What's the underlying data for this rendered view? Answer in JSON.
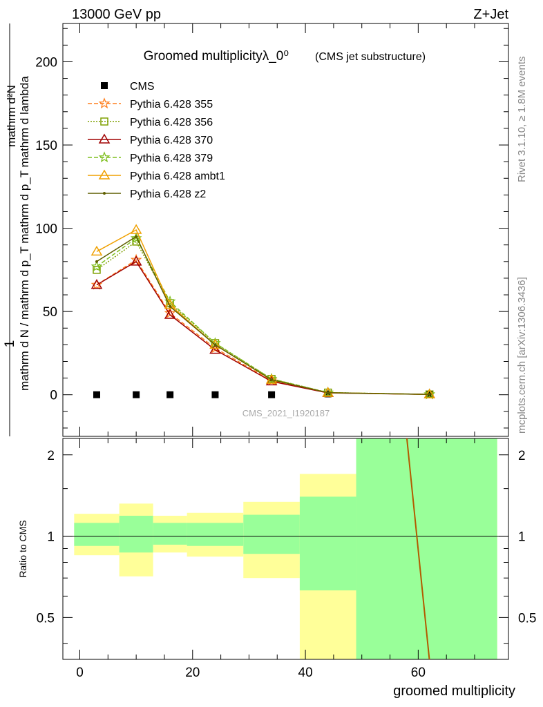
{
  "header": {
    "left": "13000 GeV pp",
    "right": "Z+Jet"
  },
  "side_labels": {
    "rivet": "Rivet 3.1.10, ≥ 1.8M events",
    "mcplots": "mcplots.cern.ch [arXiv:1306.3436]"
  },
  "colors": {
    "cms": "#000000",
    "p355": "#ff7f1e",
    "p356": "#7f9f00",
    "p370": "#a00000",
    "p379": "#7fbf1f",
    "ambt1": "#f0a000",
    "z2": "#5f5f00",
    "band_outer": "#ffff99",
    "band_inner": "#99ff99",
    "ratio_line": "#b35a00"
  },
  "chart_data": [
    {
      "type": "line",
      "title": "Groomed multiplicityλ_0⁰",
      "subtitle": "(CMS jet substructure)",
      "watermark": "CMS_2021_I1920187",
      "ylabel_upper": "1",
      "ylabel_main": "mathrm d N / mathrm d p_T mathrm d p_T mathrm d lambda",
      "ylabel_over": "mathrm d²N",
      "ylim": [
        -25,
        223
      ],
      "yticks": [
        0,
        50,
        100,
        150,
        200
      ],
      "xlim": [
        -3,
        76
      ],
      "bins": [
        [
          -1,
          7
        ],
        [
          7,
          13
        ],
        [
          13,
          19
        ],
        [
          19,
          29
        ],
        [
          29,
          39
        ],
        [
          39,
          49
        ],
        [
          49,
          74
        ]
      ],
      "x": [
        3,
        10,
        16,
        24,
        34,
        44,
        62
      ],
      "series": [
        {
          "name": "CMS",
          "key": "cms",
          "marker": "square",
          "values": [
            0,
            0,
            0,
            0,
            0,
            0.5,
            0.2
          ]
        },
        {
          "name": "Pythia 6.428 355",
          "key": "p355",
          "marker": "star",
          "dash": "6,3",
          "values": [
            66,
            81,
            49,
            28,
            8.5,
            1.2,
            0.2
          ]
        },
        {
          "name": "Pythia 6.428 356",
          "key": "p356",
          "marker": "open-square",
          "dash": "2,2",
          "values": [
            75,
            92,
            55,
            31,
            9.5,
            1.3,
            0.2
          ]
        },
        {
          "name": "Pythia 6.428 370",
          "key": "p370",
          "marker": "open-triangle",
          "dash": "",
          "values": [
            66,
            80,
            48,
            27,
            8.0,
            1.1,
            0.2
          ]
        },
        {
          "name": "Pythia 6.428 379",
          "key": "p379",
          "marker": "star",
          "dash": "6,3",
          "values": [
            77,
            94,
            56,
            31,
            9.5,
            1.3,
            0.2
          ]
        },
        {
          "name": "Pythia 6.428 ambt1",
          "key": "ambt1",
          "marker": "open-triangle",
          "dash": "",
          "values": [
            86,
            99,
            54,
            30,
            9.0,
            1.2,
            0.2
          ]
        },
        {
          "name": "Pythia 6.428 z2",
          "key": "z2",
          "marker": "dot",
          "dash": "",
          "values": [
            80,
            95,
            53,
            30,
            9.0,
            1.2,
            0.2
          ]
        }
      ]
    },
    {
      "type": "area",
      "ylabel": "Ratio to CMS",
      "xlabel": "groomed multiplicity",
      "ylim": [
        0.35,
        2.3
      ],
      "yticks": [
        0.5,
        1,
        2
      ],
      "xticks": [
        0,
        20,
        40,
        60
      ],
      "bands": [
        {
          "x0": -1,
          "x1": 7,
          "outer_lo": 0.85,
          "outer_hi": 1.21,
          "inner_lo": 0.92,
          "inner_hi": 1.12
        },
        {
          "x0": 7,
          "x1": 13,
          "outer_lo": 0.71,
          "outer_hi": 1.32,
          "inner_lo": 0.87,
          "inner_hi": 1.19
        },
        {
          "x0": 13,
          "x1": 19,
          "outer_lo": 0.87,
          "outer_hi": 1.19,
          "inner_lo": 0.93,
          "inner_hi": 1.12
        },
        {
          "x0": 19,
          "x1": 29,
          "outer_lo": 0.84,
          "outer_hi": 1.22,
          "inner_lo": 0.92,
          "inner_hi": 1.12
        },
        {
          "x0": 29,
          "x1": 39,
          "outer_lo": 0.7,
          "outer_hi": 1.34,
          "inner_lo": 0.86,
          "inner_hi": 1.2
        },
        {
          "x0": 39,
          "x1": 49,
          "outer_lo": 0.3,
          "outer_hi": 1.7,
          "inner_lo": 0.63,
          "inner_hi": 1.4
        },
        {
          "x0": 49,
          "x1": 74,
          "outer_lo": 0.3,
          "outer_hi": 2.4,
          "inner_lo": 0.3,
          "inner_hi": 2.4
        }
      ],
      "ratio_line": {
        "x": [
          57.9,
          62.3
        ],
        "y": [
          2.4,
          0.3
        ]
      }
    }
  ]
}
